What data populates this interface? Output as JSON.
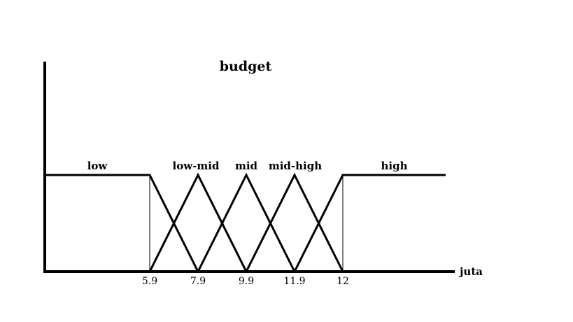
{
  "chart_data": {
    "type": "line",
    "title": "budget",
    "xlabel": "juta",
    "ylabel": "",
    "ticks": [
      "5.9",
      "7.9",
      "9.9",
      "11.9",
      "12"
    ],
    "series": [
      {
        "name": "low",
        "points": [
          [
            "start",
            1
          ],
          [
            "5.9",
            1
          ],
          [
            "7.9",
            0
          ]
        ]
      },
      {
        "name": "low-mid",
        "points": [
          [
            "5.9",
            0
          ],
          [
            "7.9",
            1
          ],
          [
            "9.9",
            0
          ]
        ]
      },
      {
        "name": "mid",
        "points": [
          [
            "7.9",
            0
          ],
          [
            "9.9",
            1
          ],
          [
            "11.9",
            0
          ]
        ]
      },
      {
        "name": "mid-high",
        "points": [
          [
            "9.9",
            0
          ],
          [
            "11.9",
            1
          ],
          [
            "12",
            0
          ]
        ]
      },
      {
        "name": "high",
        "points": [
          [
            "11.9",
            0
          ],
          [
            "12",
            1
          ],
          [
            "end",
            1
          ]
        ]
      }
    ],
    "grid": false,
    "legend": "none"
  }
}
